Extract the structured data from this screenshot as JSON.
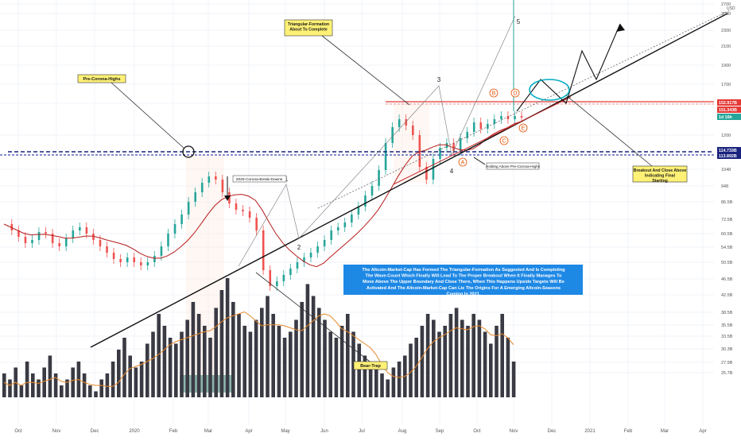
{
  "chart_data": {
    "type": "candlestick",
    "currency": "USD",
    "x_ticks": [
      "Oct",
      "Nov",
      "Dec",
      "2020",
      "Feb",
      "Mar",
      "Apr",
      "May",
      "Jun",
      "Jul",
      "Aug",
      "Sep",
      "Oct",
      "Nov",
      "Dec",
      "2021",
      "Feb",
      "Mar",
      "Apr"
    ],
    "price_ticks": [
      {
        "label": "2700",
        "value": 2700
      },
      {
        "label": "2500",
        "value": 2500
      },
      {
        "label": "2300",
        "value": 2300
      },
      {
        "label": "2100",
        "value": 2100
      },
      {
        "label": "1900",
        "value": 1900
      },
      {
        "label": "1700",
        "value": 1700
      },
      {
        "label": "1500",
        "value": 1500
      },
      {
        "label": "1200",
        "value": 1200
      },
      {
        "label": "1048",
        "value": 1048
      },
      {
        "label": "948",
        "value": 948
      },
      {
        "label": "86.5B",
        "value": 86.5
      },
      {
        "label": "72.5B",
        "value": 72.5
      },
      {
        "label": "60.5B",
        "value": 60.5
      },
      {
        "label": "54.5B",
        "value": 54.5
      },
      {
        "label": "50.5B",
        "value": 50.5
      },
      {
        "label": "46.5B",
        "value": 46.5
      },
      {
        "label": "42.5B",
        "value": 42.5
      },
      {
        "label": "38.5B",
        "value": 38.5
      },
      {
        "label": "35.5B",
        "value": 35.5
      },
      {
        "label": "33.5B",
        "value": 33.5
      },
      {
        "label": "30.3B",
        "value": 30.3
      },
      {
        "label": "27.9B",
        "value": 27.9
      },
      {
        "label": "25.7B",
        "value": 25.7
      }
    ],
    "price_markers": [
      {
        "label": "152.917B",
        "color": "#e53935"
      },
      {
        "label": "151.343B",
        "color": "#e53935"
      },
      {
        "label": "1d 16h",
        "color": "#26a69a"
      },
      {
        "label": "114.733B",
        "color": "#1a237e"
      },
      {
        "label": "113.892B",
        "color": "#1a237e"
      }
    ],
    "wave_labels": [
      "1",
      "2",
      "3",
      "4",
      "5"
    ],
    "abc_labels": [
      "A",
      "B",
      "C",
      "D",
      "E"
    ],
    "annotations": {
      "pre_corona_highs": "Pre-Corona-Highs",
      "triangle": "Triangular-Formation About To Complete",
      "breakout": "Breakout And Close Above Indicating Final Starting",
      "bear_trap": "Bear-Trap",
      "corona_break": "2020-Corona-Break-Downs",
      "holding": "Holding Above Pre-Corona-Highs",
      "main_text": "The Altcoin-Market-Cap Has Formed The Triangular-Formation As Suggested And Is Completing The Wave-Count Which Finally Will Lead To The Proper Breakout When It Finally Manages To Move Above The Upper Boundary And Close There, When This Happens Upside Targets Will Be Activated And The Altcoin-Market-Cap Can Lie The Origins For A Emerging Altcoin-Seasons Coming In 2021."
    },
    "price_series": [
      [
        0,
        84
      ],
      [
        3,
        80
      ],
      [
        6,
        76
      ],
      [
        9,
        72
      ],
      [
        12,
        74
      ],
      [
        15,
        79
      ],
      [
        18,
        78
      ],
      [
        21,
        72
      ],
      [
        24,
        70
      ],
      [
        27,
        75
      ],
      [
        30,
        80
      ],
      [
        33,
        82
      ],
      [
        36,
        78
      ],
      [
        39,
        74
      ],
      [
        42,
        70
      ],
      [
        45,
        66
      ],
      [
        48,
        62
      ],
      [
        51,
        60
      ],
      [
        54,
        63
      ],
      [
        57,
        60
      ],
      [
        60,
        58
      ],
      [
        63,
        60
      ],
      [
        66,
        64
      ],
      [
        69,
        70
      ],
      [
        72,
        78
      ],
      [
        75,
        84
      ],
      [
        78,
        90
      ],
      [
        81,
        98
      ],
      [
        84,
        104
      ],
      [
        87,
        110
      ],
      [
        90,
        114
      ],
      [
        93,
        112
      ],
      [
        96,
        104
      ],
      [
        99,
        97
      ],
      [
        102,
        93
      ],
      [
        105,
        92
      ],
      [
        108,
        88
      ],
      [
        111,
        80
      ],
      [
        114,
        55
      ],
      [
        117,
        45
      ],
      [
        120,
        48
      ],
      [
        123,
        52
      ],
      [
        126,
        56
      ],
      [
        129,
        60
      ],
      [
        132,
        63
      ],
      [
        135,
        66
      ],
      [
        138,
        70
      ],
      [
        141,
        74
      ],
      [
        144,
        80
      ],
      [
        147,
        82
      ],
      [
        150,
        85
      ],
      [
        153,
        90
      ],
      [
        156,
        95
      ],
      [
        159,
        102
      ],
      [
        162,
        108
      ],
      [
        165,
        118
      ],
      [
        168,
        135
      ],
      [
        171,
        145
      ],
      [
        174,
        150
      ],
      [
        177,
        146
      ],
      [
        180,
        140
      ],
      [
        183,
        120
      ],
      [
        186,
        112
      ],
      [
        189,
        125
      ],
      [
        192,
        132
      ],
      [
        195,
        135
      ],
      [
        198,
        130
      ],
      [
        201,
        138
      ],
      [
        204,
        142
      ],
      [
        207,
        148
      ],
      [
        210,
        144
      ],
      [
        213,
        147
      ],
      [
        216,
        150
      ],
      [
        219,
        152
      ],
      [
        222,
        150
      ],
      [
        225,
        152
      ],
      [
        228,
        151
      ]
    ],
    "volume_series": [
      28,
      27,
      29,
      26,
      30,
      28,
      27,
      29,
      31,
      28,
      26,
      27,
      29,
      30,
      28,
      26,
      25,
      27,
      28,
      30,
      32,
      34,
      31,
      29,
      30,
      33,
      35,
      38,
      36,
      34,
      33,
      35,
      37,
      40,
      38,
      36,
      34,
      39,
      42,
      44,
      40,
      38,
      36,
      35,
      37,
      39,
      41,
      38,
      36,
      34,
      35,
      37,
      40,
      43,
      41,
      39,
      37,
      35,
      34,
      36,
      38,
      35,
      33,
      31,
      30,
      29,
      28,
      27,
      29,
      30,
      31,
      33,
      34,
      36,
      38,
      37,
      35,
      36,
      38,
      39,
      37,
      36,
      38,
      37,
      35,
      33,
      36,
      38,
      34,
      30
    ]
  }
}
